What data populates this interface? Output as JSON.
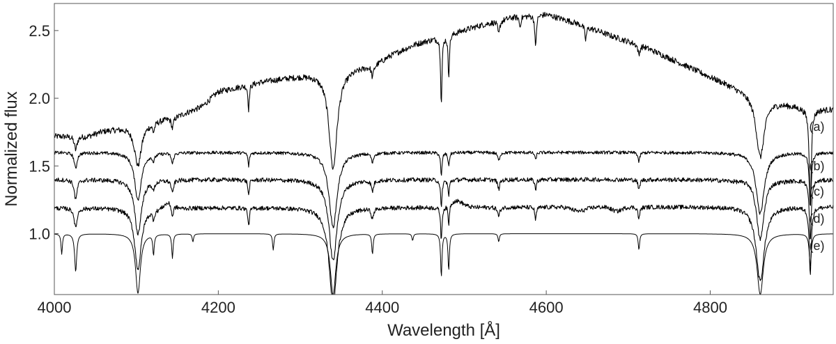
{
  "chart_data": {
    "type": "line",
    "title": "",
    "xlabel": "Wavelength [Å]",
    "ylabel": "Normalized flux",
    "xlim": [
      4000,
      4950
    ],
    "ylim": [
      0.55,
      2.7
    ],
    "xticks": [
      4000,
      4200,
      4400,
      4600,
      4800
    ],
    "xtick_labels": [
      "4000",
      "4200",
      "4400",
      "4600",
      "4800"
    ],
    "yticks": [
      1.0,
      1.5,
      2.0,
      2.5
    ],
    "ytick_labels": [
      "1.0",
      "1.5",
      "2.0",
      "2.5"
    ],
    "grid": false,
    "legend": "none",
    "line_color": "#000000",
    "series": [
      {
        "label": "(a)",
        "label_y": 1.79,
        "label_x": 4930,
        "continuum": [
          [
            4000,
            1.72
          ],
          [
            4040,
            1.72
          ],
          [
            4060,
            1.76
          ],
          [
            4100,
            1.8
          ],
          [
            4150,
            1.87
          ],
          [
            4180,
            1.94
          ],
          [
            4200,
            2.05
          ],
          [
            4250,
            2.12
          ],
          [
            4300,
            2.17
          ],
          [
            4350,
            2.21
          ],
          [
            4390,
            2.25
          ],
          [
            4410,
            2.32
          ],
          [
            4440,
            2.4
          ],
          [
            4480,
            2.47
          ],
          [
            4520,
            2.54
          ],
          [
            4560,
            2.6
          ],
          [
            4600,
            2.62
          ],
          [
            4640,
            2.55
          ],
          [
            4680,
            2.46
          ],
          [
            4720,
            2.38
          ],
          [
            4760,
            2.27
          ],
          [
            4800,
            2.16
          ],
          [
            4840,
            2.06
          ],
          [
            4880,
            1.98
          ],
          [
            4920,
            1.92
          ],
          [
            4950,
            1.92
          ]
        ],
        "noise": 0.022,
        "lines": [
          [
            4026,
            0.1,
            2
          ],
          [
            4102,
            0.3,
            5
          ],
          [
            4121,
            0.06,
            1.5
          ],
          [
            4144,
            0.08,
            1.5
          ],
          [
            4237,
            0.18,
            1
          ],
          [
            4340,
            0.72,
            6
          ],
          [
            4388,
            0.08,
            1.5
          ],
          [
            4472,
            0.5,
            1
          ],
          [
            4481,
            0.3,
            1
          ],
          [
            4542,
            0.1,
            1.5
          ],
          [
            4568,
            0.08,
            1
          ],
          [
            4587,
            0.25,
            1
          ],
          [
            4648,
            0.1,
            1.2
          ],
          [
            4713,
            0.08,
            1.2
          ],
          [
            4861,
            0.45,
            6
          ],
          [
            4922,
            0.7,
            1.5
          ]
        ]
      },
      {
        "label": "(b)",
        "label_y": 1.5,
        "label_x": 4930,
        "continuum": [
          [
            4000,
            1.6
          ],
          [
            4950,
            1.6
          ]
        ],
        "noise": 0.012,
        "lines": [
          [
            4026,
            0.12,
            2
          ],
          [
            4102,
            0.35,
            5
          ],
          [
            4121,
            0.05,
            1.5
          ],
          [
            4144,
            0.08,
            1.5
          ],
          [
            4237,
            0.1,
            1
          ],
          [
            4340,
            0.55,
            6
          ],
          [
            4388,
            0.07,
            1.5
          ],
          [
            4472,
            0.18,
            1
          ],
          [
            4481,
            0.1,
            1
          ],
          [
            4542,
            0.06,
            1.5
          ],
          [
            4587,
            0.06,
            1
          ],
          [
            4713,
            0.07,
            1.2
          ],
          [
            4861,
            0.45,
            6
          ],
          [
            4922,
            0.4,
            1.5
          ]
        ]
      },
      {
        "label": "(c)",
        "label_y": 1.31,
        "label_x": 4930,
        "continuum": [
          [
            4000,
            1.4
          ],
          [
            4950,
            1.4
          ]
        ],
        "noise": 0.016,
        "lines": [
          [
            4026,
            0.15,
            2
          ],
          [
            4102,
            0.4,
            5
          ],
          [
            4121,
            0.06,
            1.5
          ],
          [
            4144,
            0.1,
            1.5
          ],
          [
            4237,
            0.12,
            1
          ],
          [
            4340,
            0.6,
            6
          ],
          [
            4388,
            0.08,
            1.5
          ],
          [
            4472,
            0.22,
            1
          ],
          [
            4481,
            0.12,
            1
          ],
          [
            4542,
            0.07,
            1.5
          ],
          [
            4587,
            0.08,
            1
          ],
          [
            4713,
            0.08,
            1.2
          ],
          [
            4861,
            0.5,
            6
          ],
          [
            4922,
            0.45,
            1.5
          ]
        ],
        "bumps": [
          [
            4860,
            0.06,
            12
          ]
        ]
      },
      {
        "label": "(d)",
        "label_y": 1.11,
        "label_x": 4930,
        "continuum": [
          [
            4000,
            1.19
          ],
          [
            4950,
            1.2
          ]
        ],
        "noise": 0.016,
        "lines": [
          [
            4026,
            0.15,
            2
          ],
          [
            4102,
            0.45,
            5
          ],
          [
            4121,
            0.06,
            1.5
          ],
          [
            4144,
            0.1,
            1.5
          ],
          [
            4237,
            0.14,
            1
          ],
          [
            4340,
            0.7,
            6
          ],
          [
            4388,
            0.08,
            1.5
          ],
          [
            4472,
            0.25,
            1
          ],
          [
            4481,
            0.15,
            1
          ],
          [
            4542,
            0.07,
            1.5
          ],
          [
            4587,
            0.1,
            1
          ],
          [
            4713,
            0.09,
            1.2
          ],
          [
            4861,
            0.55,
            6
          ],
          [
            4922,
            0.5,
            1.5
          ]
        ],
        "bumps": [
          [
            4140,
            0.05,
            6
          ],
          [
            4490,
            0.05,
            8
          ],
          [
            4640,
            -0.03,
            8
          ],
          [
            4686,
            -0.03,
            6
          ]
        ]
      },
      {
        "label": "(e)",
        "label_y": 0.91,
        "label_x": 4930,
        "continuum": [
          [
            4000,
            1.0
          ],
          [
            4950,
            1.0
          ]
        ],
        "noise": 0.0,
        "lines": [
          [
            4009,
            0.15,
            1
          ],
          [
            4026,
            0.28,
            1.5
          ],
          [
            4102,
            0.44,
            3.5
          ],
          [
            4121,
            0.15,
            1
          ],
          [
            4144,
            0.18,
            1
          ],
          [
            4169,
            0.06,
            1
          ],
          [
            4267,
            0.12,
            1
          ],
          [
            4340,
            0.45,
            4
          ],
          [
            4388,
            0.15,
            1
          ],
          [
            4437,
            0.05,
            1
          ],
          [
            4472,
            0.32,
            1
          ],
          [
            4481,
            0.27,
            1
          ],
          [
            4542,
            0.06,
            1
          ],
          [
            4713,
            0.12,
            1
          ],
          [
            4861,
            0.45,
            4.5
          ],
          [
            4922,
            0.24,
            1.5
          ]
        ]
      }
    ]
  }
}
